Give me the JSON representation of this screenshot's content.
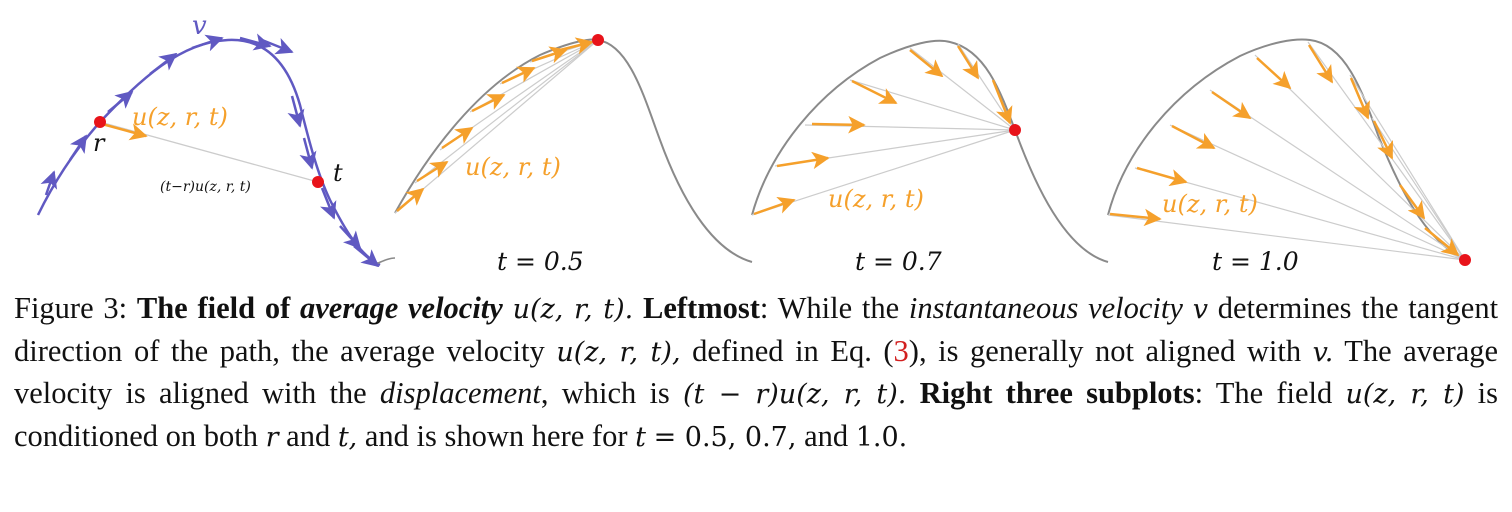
{
  "figure": {
    "left_panel": {
      "v_label": "v",
      "r_label": "r",
      "t_label": "t",
      "u_label": "u(z, r, t)",
      "displacement_label": "(t−r)u(z, r, t)"
    },
    "subplots": [
      {
        "u_label": "u(z, r, t)",
        "t_caption": "t = 0.5",
        "t_value": 0.5
      },
      {
        "u_label": "u(z, r, t)",
        "t_caption": "t = 0.7",
        "t_value": 0.7
      },
      {
        "u_label": "u(z, r, t)",
        "t_caption": "t = 1.0",
        "t_value": 1.0
      }
    ],
    "colors": {
      "path": "#8a8a8a",
      "instantaneous_velocity": "#6059c2",
      "average_velocity": "#f5a02b",
      "point": "#e8131a",
      "chord": "#cccccc"
    }
  },
  "caption": {
    "figure_label": "Figure 3:",
    "title_bold": "The field of",
    "title_bold_italic": "average velocity",
    "title_math": "u(z, r, t).",
    "leftmost_label": "Leftmost",
    "s1_a": ": While the",
    "s1_it": "instantaneous velocity",
    "s1_v": "v",
    "s1_b": "determines the tangent direction of the path, the average velocity",
    "s1_math": "u(z, r, t),",
    "s1_c": "defined in Eq. (",
    "eq_ref": "3",
    "s1_d": "),",
    "s2_a": "is generally not aligned with",
    "s2_v": "v.",
    "s2_b": "The average velocity is aligned with the",
    "s2_it": "displacement",
    "s2_c": ", which is",
    "s3_math": "(t − r)u(z, r, t).",
    "right_label": "Right three subplots",
    "s3_a": ": The field",
    "s3_math2": "u(z, r, t)",
    "s3_b": "is conditioned on both",
    "s3_r": "r",
    "s3_c": "and",
    "s3_t": "t,",
    "s3_d": "and is",
    "s4_a": "shown here for",
    "s4_math": "t",
    "s4_eq": "= 0.5, 0.7,",
    "s4_b": "and",
    "s4_val": "1.0.",
    "s4_c": ""
  }
}
